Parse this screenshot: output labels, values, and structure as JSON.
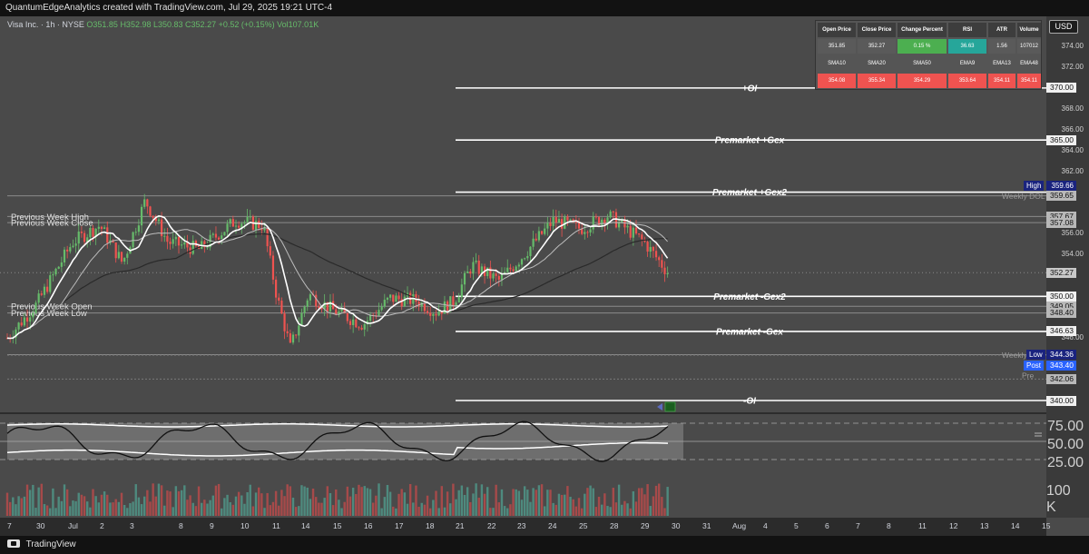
{
  "header": {
    "title": "QuantumEdgeAnalytics created with TradingView.com, Jul 29, 2025 19:21 UTC-4"
  },
  "legend": {
    "symbol": "Visa Inc. · 1h · NYSE",
    "open": "O351.85",
    "high": "H352.98",
    "low": "L350.83",
    "close": "C352.27",
    "change": "+0.52 (+0.15%)",
    "volume": "Vol107.01K"
  },
  "currency_button": "USD",
  "stats_table": {
    "headers": [
      "Open Price",
      "Close Price",
      "Change Percent",
      "RSI",
      "ATR",
      "Volume"
    ],
    "values": [
      "351.85",
      "352.27",
      "0.15 %",
      "36.63",
      "1.56",
      "107012"
    ],
    "ma_headers": [
      "SMA10",
      "SMA20",
      "SMA50",
      "EMA9",
      "EMA13",
      "EMA48"
    ],
    "ma_values": [
      "354.08",
      "355.34",
      "354.29",
      "353.64",
      "354.11",
      "354.11"
    ]
  },
  "price_ticks": [
    "374.00",
    "372.00",
    "368.00",
    "366.00",
    "364.00",
    "362.00",
    "356.00",
    "354.00",
    "346.00"
  ],
  "price_labels": [
    {
      "text": "370.00",
      "price": 370.0
    },
    {
      "text": "365.00",
      "price": 365.0
    },
    {
      "text": "360.00",
      "price": 360.0
    },
    {
      "text": "359.65",
      "price": 359.65
    },
    {
      "text": "357.67",
      "price": 357.67
    },
    {
      "text": "357.08",
      "price": 357.08
    },
    {
      "text": "352.27",
      "price": 352.27
    },
    {
      "text": "350.00",
      "price": 350.0
    },
    {
      "text": "349.05",
      "price": 349.05
    },
    {
      "text": "348.40",
      "price": 348.4
    },
    {
      "text": "346.63",
      "price": 346.63
    },
    {
      "text": "344.40",
      "price": 344.4
    },
    {
      "text": "344.36",
      "price": 344.36
    },
    {
      "text": "343.40",
      "price": 343.4
    },
    {
      "text": "342.06",
      "price": 342.06
    },
    {
      "text": "340.00",
      "price": 340.0
    }
  ],
  "special_labels": {
    "high": {
      "tag": "High",
      "value": "359.66"
    },
    "low": {
      "tag": "Low",
      "value": "344.36"
    },
    "post": {
      "tag": "Post",
      "value": "343.40"
    }
  },
  "level_lines": [
    {
      "label": "+OI",
      "price": 370.0
    },
    {
      "label": "Premarket +Gex",
      "price": 365.0
    },
    {
      "label": "Premarket +Gex2",
      "price": 360.0
    },
    {
      "label": "Premarket -Gex2",
      "price": 350.0
    },
    {
      "label": "Premarket -Gex",
      "price": 346.63
    },
    {
      "label": "-OI",
      "price": 340.0
    }
  ],
  "left_labels": [
    "Previous Week High",
    "Previous Week Close",
    "Previous Week Open",
    "Previous Week Low"
  ],
  "weekly_labels": [
    "Weekly DOL",
    "Weekly DOL",
    "Pre"
  ],
  "oscillator_ticks": [
    "75.00",
    "50.00",
    "25.00"
  ],
  "volume_tick": "100 K",
  "time_axis": [
    "7",
    "30",
    "Jul",
    "2",
    "3",
    "8",
    "9",
    "10",
    "11",
    "14",
    "15",
    "16",
    "17",
    "18",
    "21",
    "22",
    "23",
    "24",
    "25",
    "28",
    "29",
    "30",
    "31",
    "Aug",
    "4",
    "5",
    "6",
    "7",
    "8",
    "11",
    "12",
    "13",
    "14",
    "15"
  ],
  "footer": {
    "brand": "TradingView"
  },
  "colors": {
    "up": "#66bb6a",
    "down": "#ef5350",
    "background": "#4a4a4a",
    "positive_cell": "#4caf50",
    "rsi_cell": "#26a69a",
    "negative_cell": "#ef5350"
  }
}
